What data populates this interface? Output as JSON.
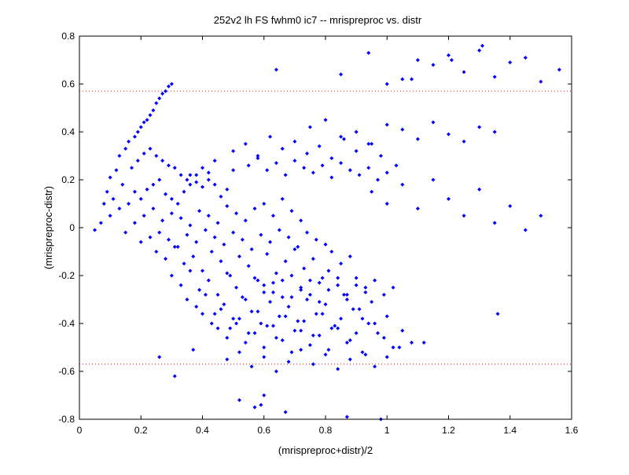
{
  "chart_data": {
    "type": "scatter",
    "title": "252v2 lh FS fwhm0 ic7 -- mrispreproc vs. distr",
    "xlabel": "(mrispreproc+distr)/2",
    "ylabel": "(mrispreproc-distr)",
    "xlim": [
      0,
      1.6
    ],
    "ylim": [
      -0.8,
      0.8
    ],
    "xticks": [
      "0",
      "0.2",
      "0.4",
      "0.6",
      "0.8",
      "1",
      "1.2",
      "1.4",
      "1.6"
    ],
    "yticks": [
      "0.8",
      "0.6",
      "0.4",
      "0.2",
      "0",
      "-0.2",
      "-0.4",
      "-0.6",
      "-0.8"
    ],
    "grid": false,
    "marker_color": "#0000ff",
    "threshold_color": "#ff0000",
    "threshold_lines": [
      0.57,
      -0.57
    ],
    "series": [
      {
        "x": [
          0.05,
          0.07,
          0.09,
          0.1,
          0.12,
          0.13,
          0.15,
          0.16,
          0.18,
          0.19,
          0.2,
          0.21,
          0.22,
          0.23,
          0.24,
          0.25,
          0.26,
          0.27,
          0.28,
          0.29,
          0.3,
          0.08,
          0.11,
          0.14,
          0.17,
          0.19,
          0.21,
          0.23,
          0.25,
          0.27,
          0.29,
          0.31,
          0.33,
          0.35,
          0.36,
          0.38,
          0.4,
          0.42,
          0.44,
          0.1,
          0.13,
          0.16,
          0.18,
          0.2,
          0.22,
          0.24,
          0.26,
          0.28,
          0.3,
          0.32,
          0.34,
          0.36,
          0.38,
          0.4,
          0.42,
          0.44,
          0.46,
          0.48,
          0.5,
          0.15,
          0.18,
          0.21,
          0.24,
          0.27,
          0.3,
          0.33,
          0.36,
          0.39,
          0.42,
          0.45,
          0.48,
          0.51,
          0.54,
          0.57,
          0.6,
          0.63,
          0.66,
          0.69,
          0.72,
          0.2,
          0.23,
          0.26,
          0.29,
          0.32,
          0.35,
          0.38,
          0.41,
          0.44,
          0.47,
          0.5,
          0.53,
          0.56,
          0.59,
          0.62,
          0.65,
          0.68,
          0.71,
          0.74,
          0.77,
          0.8,
          0.25,
          0.28,
          0.31,
          0.34,
          0.37,
          0.4,
          0.43,
          0.46,
          0.49,
          0.52,
          0.55,
          0.58,
          0.61,
          0.64,
          0.67,
          0.7,
          0.73,
          0.76,
          0.79,
          0.82,
          0.85,
          0.88,
          0.3,
          0.33,
          0.36,
          0.39,
          0.42,
          0.45,
          0.48,
          0.51,
          0.54,
          0.57,
          0.6,
          0.63,
          0.66,
          0.69,
          0.72,
          0.75,
          0.78,
          0.81,
          0.84,
          0.87,
          0.9,
          0.93,
          0.35,
          0.38,
          0.41,
          0.44,
          0.47,
          0.5,
          0.53,
          0.56,
          0.59,
          0.62,
          0.65,
          0.68,
          0.71,
          0.74,
          0.77,
          0.8,
          0.83,
          0.86,
          0.89,
          0.92,
          0.95,
          0.4,
          0.43,
          0.46,
          0.49,
          0.52,
          0.55,
          0.58,
          0.61,
          0.64,
          0.67,
          0.7,
          0.73,
          0.76,
          0.79,
          0.82,
          0.85,
          0.88,
          0.91,
          0.94,
          0.97,
          1.0,
          0.45,
          0.48,
          0.51,
          0.54,
          0.57,
          0.6,
          0.63,
          0.66,
          0.69,
          0.72,
          0.75,
          0.78,
          0.81,
          0.84,
          0.87,
          0.9,
          0.93,
          0.96,
          0.99,
          1.02,
          1.05,
          0.48,
          0.52,
          0.56,
          0.6,
          0.64,
          0.68,
          0.72,
          0.76,
          0.8,
          0.84,
          0.88,
          0.92,
          0.96,
          1.0,
          1.04,
          1.08,
          0.5,
          0.54,
          0.58,
          0.62,
          0.66,
          0.7,
          0.74,
          0.78,
          0.82,
          0.86,
          0.9,
          0.94,
          0.98,
          0.55,
          0.58,
          0.61,
          0.64,
          0.67,
          0.7,
          0.73,
          0.76,
          0.79,
          0.82,
          0.85,
          0.88,
          0.91,
          0.94,
          0.97,
          1.0,
          1.03,
          0.6,
          0.63,
          0.66,
          0.69,
          0.72,
          0.75,
          0.78,
          0.81,
          0.84,
          0.87,
          0.9,
          0.93,
          0.96,
          0.99,
          1.02,
          0.75,
          0.8,
          0.85,
          0.9,
          0.95,
          1.0,
          1.05,
          1.1,
          1.15,
          1.2,
          1.25,
          1.3,
          1.35,
          0.95,
          1.0,
          1.05,
          1.1,
          1.15,
          1.2,
          1.25,
          1.3,
          1.35,
          1.4,
          1.45,
          1.5,
          1.56,
          1.0,
          1.05,
          1.1,
          1.15,
          1.2,
          1.25,
          1.3,
          1.35,
          1.4,
          1.45,
          1.5,
          0.26,
          0.31,
          0.37,
          0.64,
          0.85,
          0.94,
          1.08,
          1.21,
          1.31,
          0.57,
          0.59,
          0.67,
          0.98,
          0.87,
          0.52,
          0.6,
          1.12,
          1.36
        ],
        "y": [
          -0.01,
          0.02,
          0.15,
          0.21,
          0.24,
          0.3,
          0.33,
          0.36,
          0.38,
          0.4,
          0.42,
          0.44,
          0.45,
          0.47,
          0.49,
          0.52,
          0.54,
          0.56,
          0.57,
          0.59,
          0.6,
          0.1,
          0.12,
          0.18,
          0.25,
          0.28,
          0.31,
          0.33,
          0.3,
          0.28,
          0.26,
          0.25,
          0.22,
          0.2,
          0.18,
          0.22,
          0.25,
          0.23,
          0.28,
          0.05,
          0.08,
          0.1,
          0.15,
          0.12,
          0.16,
          0.18,
          0.2,
          0.14,
          0.12,
          0.1,
          0.15,
          0.22,
          0.19,
          0.17,
          0.2,
          0.18,
          0.13,
          0.16,
          0.24,
          -0.02,
          0.02,
          0.05,
          0.08,
          0.03,
          0.06,
          0.04,
          0.01,
          0.07,
          0.05,
          0.02,
          0.09,
          0.06,
          0.03,
          0.08,
          0.1,
          0.05,
          0.12,
          0.07,
          0.03,
          -0.06,
          -0.04,
          -0.02,
          -0.05,
          -0.08,
          -0.03,
          -0.06,
          -0.01,
          -0.04,
          -0.07,
          -0.02,
          -0.05,
          -0.09,
          -0.03,
          -0.06,
          -0.01,
          -0.04,
          -0.08,
          -0.02,
          -0.05,
          -0.07,
          -0.1,
          -0.13,
          -0.08,
          -0.15,
          -0.12,
          -0.18,
          -0.1,
          -0.14,
          -0.2,
          -0.12,
          -0.16,
          -0.22,
          -0.11,
          -0.19,
          -0.14,
          -0.09,
          -0.17,
          -0.13,
          -0.21,
          -0.1,
          -0.15,
          -0.12,
          -0.2,
          -0.24,
          -0.18,
          -0.26,
          -0.22,
          -0.28,
          -0.19,
          -0.25,
          -0.3,
          -0.21,
          -0.27,
          -0.23,
          -0.29,
          -0.2,
          -0.26,
          -0.22,
          -0.31,
          -0.18,
          -0.24,
          -0.28,
          -0.21,
          -0.25,
          -0.3,
          -0.33,
          -0.28,
          -0.36,
          -0.32,
          -0.38,
          -0.29,
          -0.35,
          -0.4,
          -0.31,
          -0.37,
          -0.33,
          -0.39,
          -0.3,
          -0.36,
          -0.32,
          -0.41,
          -0.28,
          -0.34,
          -0.38,
          -0.31,
          -0.36,
          -0.4,
          -0.34,
          -0.42,
          -0.38,
          -0.44,
          -0.35,
          -0.41,
          -0.46,
          -0.37,
          -0.43,
          -0.39,
          -0.45,
          -0.36,
          -0.42,
          -0.38,
          -0.47,
          -0.34,
          -0.4,
          -0.44,
          -0.37,
          -0.42,
          -0.46,
          -0.4,
          -0.48,
          -0.44,
          -0.5,
          -0.41,
          -0.47,
          -0.52,
          -0.43,
          -0.49,
          -0.45,
          -0.51,
          -0.42,
          -0.48,
          -0.44,
          -0.53,
          -0.4,
          -0.46,
          -0.5,
          -0.43,
          -0.55,
          -0.52,
          -0.58,
          -0.54,
          -0.6,
          -0.56,
          -0.51,
          -0.57,
          -0.53,
          -0.59,
          -0.55,
          -0.52,
          -0.58,
          -0.54,
          -0.5,
          -0.48,
          0.32,
          0.35,
          0.3,
          0.38,
          0.33,
          0.36,
          0.31,
          0.34,
          0.29,
          0.37,
          0.32,
          0.35,
          0.3,
          0.26,
          0.29,
          0.24,
          0.27,
          0.22,
          0.28,
          0.25,
          0.23,
          0.26,
          0.21,
          0.27,
          0.24,
          0.22,
          0.25,
          0.2,
          0.23,
          0.26,
          -0.24,
          -0.27,
          -0.22,
          -0.29,
          -0.25,
          -0.28,
          -0.23,
          -0.26,
          -0.21,
          -0.3,
          -0.24,
          -0.27,
          -0.22,
          -0.28,
          -0.25,
          0.42,
          0.45,
          0.38,
          0.4,
          0.35,
          0.43,
          0.41,
          0.37,
          0.44,
          0.39,
          0.36,
          0.42,
          0.4,
          0.15,
          0.1,
          0.18,
          0.08,
          0.2,
          0.12,
          0.05,
          0.16,
          0.02,
          0.09,
          -0.01,
          0.05,
          0.66,
          0.6,
          0.62,
          0.7,
          0.68,
          0.72,
          0.65,
          0.74,
          0.63,
          0.69,
          0.71,
          0.61,
          -0.54,
          -0.62,
          -0.51,
          0.66,
          0.64,
          0.73,
          0.62,
          0.7,
          0.76,
          -0.75,
          -0.74,
          -0.77,
          -0.8,
          -0.79,
          -0.72,
          -0.7,
          -0.48,
          -0.36
        ]
      }
    ]
  }
}
